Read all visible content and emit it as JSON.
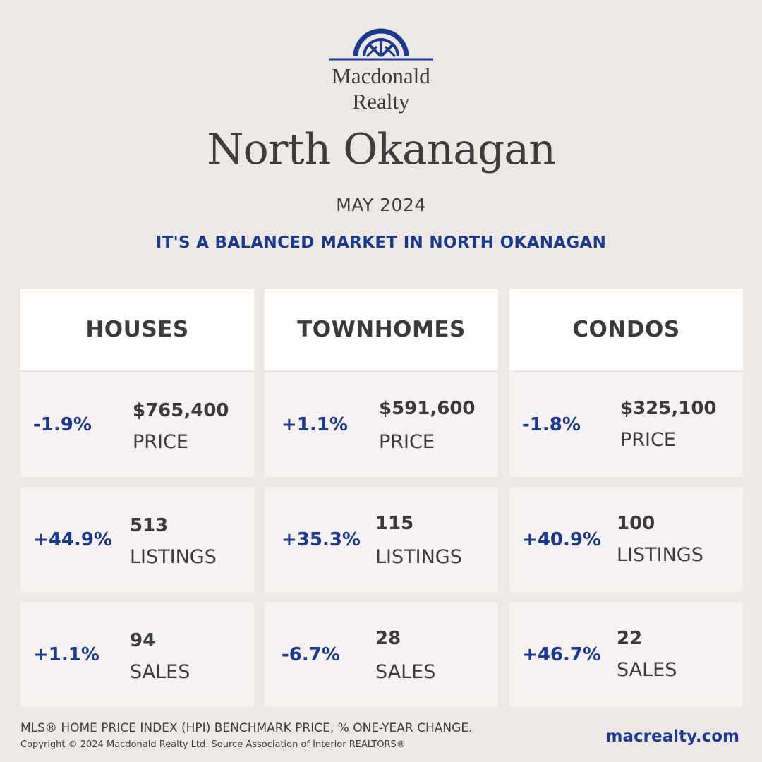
{
  "brand": {
    "line1": "Macdonald",
    "line2": "Realty",
    "logo_color": "#1c3a8c"
  },
  "title": "North Okanagan",
  "month": "MAY 2024",
  "headline": "IT'S A BALANCED MARKET IN NORTH OKANAGAN",
  "accent_color": "#1c3a8c",
  "columns": [
    {
      "name": "HOUSES",
      "price": {
        "pct": "-1.9%",
        "value": "$765,400",
        "label": "PRICE"
      },
      "listings": {
        "pct": "+44.9%",
        "value": "513",
        "label": "LISTINGS"
      },
      "sales": {
        "pct": "+1.1%",
        "value": "94",
        "label": "SALES"
      }
    },
    {
      "name": "TOWNHOMES",
      "price": {
        "pct": "+1.1%",
        "value": "$591,600",
        "label": "PRICE"
      },
      "listings": {
        "pct": "+35.3%",
        "value": "115",
        "label": "LISTINGS"
      },
      "sales": {
        "pct": "-6.7%",
        "value": "28",
        "label": "SALES"
      }
    },
    {
      "name": "CONDOS",
      "price": {
        "pct": "-1.8%",
        "value": "$325,100",
        "label": "PRICE"
      },
      "listings": {
        "pct": "+40.9%",
        "value": "100",
        "label": "LISTINGS"
      },
      "sales": {
        "pct": "+46.7%",
        "value": "22",
        "label": "SALES"
      }
    }
  ],
  "footer": {
    "note": "MLS® HOME PRICE INDEX (HPI) BENCHMARK PRICE, % ONE-YEAR CHANGE.",
    "copyright": "Copyright © 2024 Macdonald Realty Ltd. Source Association of Interior REALTORS®",
    "website": "macrealty.com"
  }
}
